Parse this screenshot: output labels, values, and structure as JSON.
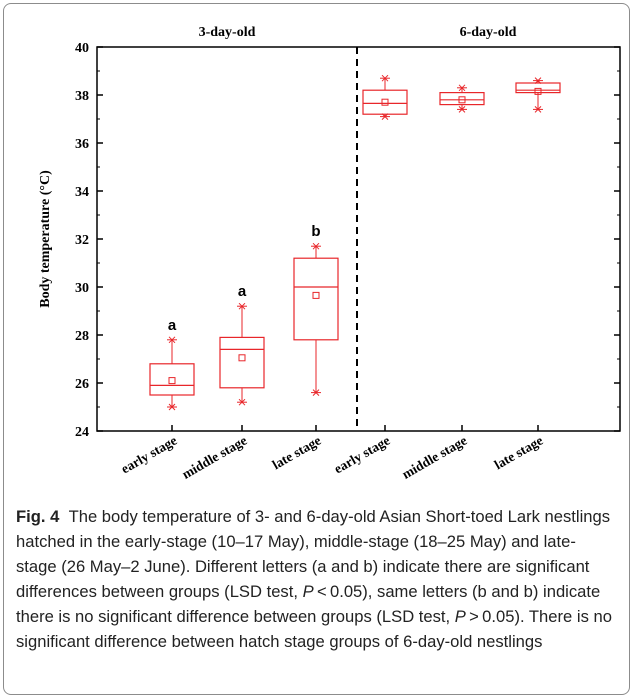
{
  "figure": {
    "fig_label": "Fig. 4",
    "caption_parts": [
      "The body temperature of 3- and 6-day-old Asian Short-toed Lark nestlings hatched in the early-stage (10–17 May), middle-stage (18–25 May) and late-stage (26 May–2 June). Different letters (a and b) indicate there are significant differences between groups (LSD test, ",
      "P",
      " < 0.05), same letters (b and b) indicate there is no significant difference between groups (LSD test, ",
      "P",
      " > 0.05). There is no significant difference between hatch stage groups of 6-day-old nestlings"
    ]
  },
  "chart_data": {
    "type": "box",
    "ylabel": "Body temperature (°C)",
    "xlabel": "",
    "ylim": [
      24,
      40
    ],
    "y_ticks": [
      24,
      26,
      28,
      30,
      32,
      34,
      36,
      38,
      40
    ],
    "panels": [
      "3-day-old",
      "6-day-old"
    ],
    "color": "#e8262a",
    "groups": [
      {
        "panel": "3-day-old",
        "category": "early stage",
        "min": 25.0,
        "q1": 25.5,
        "median": 25.9,
        "q3": 26.8,
        "max": 27.8,
        "mean": 26.1,
        "letter": "a"
      },
      {
        "panel": "3-day-old",
        "category": "middle stage",
        "min": 25.2,
        "q1": 25.8,
        "median": 27.4,
        "q3": 27.9,
        "max": 29.2,
        "mean": 27.05,
        "letter": "a"
      },
      {
        "panel": "3-day-old",
        "category": "late stage",
        "min": 25.6,
        "q1": 27.8,
        "median": 30.0,
        "q3": 31.2,
        "max": 31.7,
        "mean": 29.65,
        "letter": "b"
      },
      {
        "panel": "6-day-old",
        "category": "early stage",
        "min": 37.1,
        "q1": 37.2,
        "median": 37.65,
        "q3": 38.2,
        "max": 38.7,
        "mean": 37.7,
        "letter": ""
      },
      {
        "panel": "6-day-old",
        "category": "middle stage",
        "min": 37.4,
        "q1": 37.6,
        "median": 37.8,
        "q3": 38.1,
        "max": 38.3,
        "mean": 37.8,
        "letter": ""
      },
      {
        "panel": "6-day-old",
        "category": "late stage",
        "min": 37.4,
        "q1": 38.1,
        "median": 38.2,
        "q3": 38.5,
        "max": 38.6,
        "mean": 38.15,
        "letter": ""
      }
    ]
  }
}
